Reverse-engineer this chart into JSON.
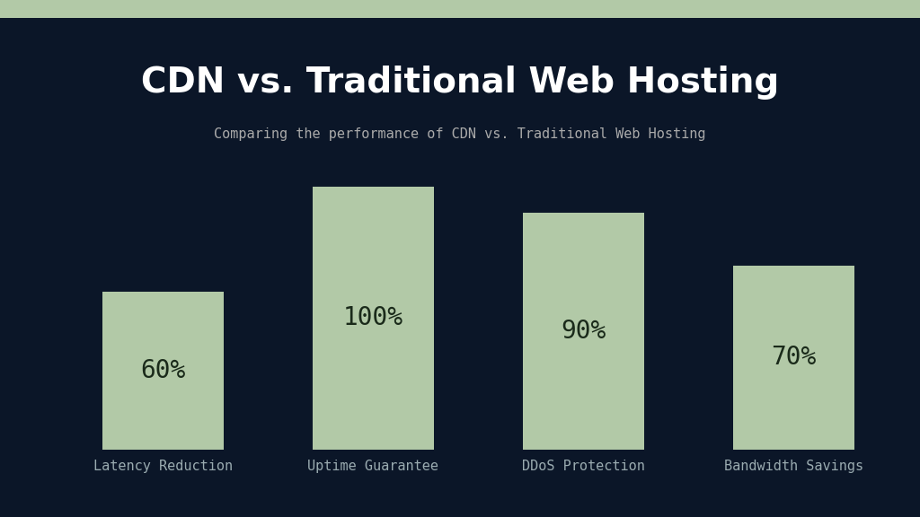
{
  "title": "CDN vs. Traditional Web Hosting",
  "subtitle": "Comparing the performance of CDN vs. Traditional Web Hosting",
  "categories": [
    "Latency Reduction",
    "Uptime Guarantee",
    "DDoS Protection",
    "Bandwidth Savings"
  ],
  "values": [
    60,
    100,
    90,
    70
  ],
  "bar_color": "#b2c9a7",
  "background_color": "#0b1628",
  "top_stripe_color": "#b2c9a7",
  "title_color": "#ffffff",
  "subtitle_color": "#aaaaaa",
  "label_color": "#9aabb0",
  "bar_label_color": "#1a2a1a",
  "title_fontsize": 28,
  "subtitle_fontsize": 11,
  "label_fontsize": 11,
  "bar_label_fontsize": 20,
  "ylim": [
    0,
    108
  ],
  "bar_width": 0.58
}
